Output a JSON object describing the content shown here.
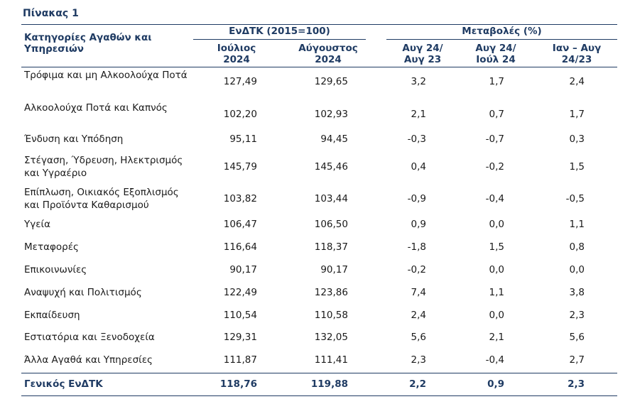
{
  "table_title": "Πίνακας 1",
  "header": {
    "category": "Κατηγορίες Αγαθών και Υπηρεσιών",
    "index_group": "ΕνΔΤΚ (2015=100)",
    "changes_group": "Μεταβολές (%)",
    "col_july": "Ιούλιος 2024",
    "col_august": "Αύγουστος 2024",
    "col_aug_aug": "Αυγ 24/ Αυγ 23",
    "col_aug_jul": "Αυγ 24/ Ιούλ 24",
    "col_jan_aug": "Ιαν – Αυγ 24/23"
  },
  "rows": [
    {
      "category": "Τρόφιμα και μη Αλκοολούχα Ποτά",
      "july": "127,49",
      "august": "129,65",
      "aug_aug": "3,2",
      "aug_jul": "1,7",
      "jan_aug": "2,4"
    },
    {
      "category": "Αλκοολούχα Ποτά και Καπνός",
      "july": "102,20",
      "august": "102,93",
      "aug_aug": "2,1",
      "aug_jul": "0,7",
      "jan_aug": "1,7"
    },
    {
      "category": "Ένδυση και Υπόδηση",
      "july": "95,11",
      "august": "94,45",
      "aug_aug": "-0,3",
      "aug_jul": "-0,7",
      "jan_aug": "0,3"
    },
    {
      "category": "Στέγαση, Ύδρευση, Ηλεκτρισμός και Υγραέριο",
      "july": "145,79",
      "august": "145,46",
      "aug_aug": "0,4",
      "aug_jul": "-0,2",
      "jan_aug": "1,5"
    },
    {
      "category": "Επίπλωση, Οικιακός Εξοπλισμός και Προϊόντα Καθαρισμού",
      "july": "103,82",
      "august": "103,44",
      "aug_aug": "-0,9",
      "aug_jul": "-0,4",
      "jan_aug": "-0,5"
    },
    {
      "category": "Υγεία",
      "july": "106,47",
      "august": "106,50",
      "aug_aug": "0,9",
      "aug_jul": "0,0",
      "jan_aug": "1,1"
    },
    {
      "category": "Μεταφορές",
      "july": "116,64",
      "august": "118,37",
      "aug_aug": "-1,8",
      "aug_jul": "1,5",
      "jan_aug": "0,8"
    },
    {
      "category": "Επικοινωνίες",
      "july": "90,17",
      "august": "90,17",
      "aug_aug": "-0,2",
      "aug_jul": "0,0",
      "jan_aug": "0,0"
    },
    {
      "category": "Αναψυχή και Πολιτισμός",
      "july": "122,49",
      "august": "123,86",
      "aug_aug": "7,4",
      "aug_jul": "1,1",
      "jan_aug": "3,8"
    },
    {
      "category": "Εκπαίδευση",
      "july": "110,54",
      "august": "110,58",
      "aug_aug": "2,4",
      "aug_jul": "0,0",
      "jan_aug": "2,3"
    },
    {
      "category": "Εστιατόρια και Ξενοδοχεία",
      "july": "129,31",
      "august": "132,05",
      "aug_aug": "5,6",
      "aug_jul": "2,1",
      "jan_aug": "5,6"
    },
    {
      "category": "Άλλα Αγαθά και Υπηρεσίες",
      "july": "111,87",
      "august": "111,41",
      "aug_aug": "2,3",
      "aug_jul": "-0,4",
      "jan_aug": "2,7"
    }
  ],
  "total": {
    "category": "Γενικός ΕνΔΤΚ",
    "july": "118,76",
    "august": "119,88",
    "aug_aug": "2,2",
    "aug_jul": "0,9",
    "jan_aug": "2,3"
  },
  "colors": {
    "header_text": "#1f3b63",
    "rule": "#1f3b63"
  }
}
